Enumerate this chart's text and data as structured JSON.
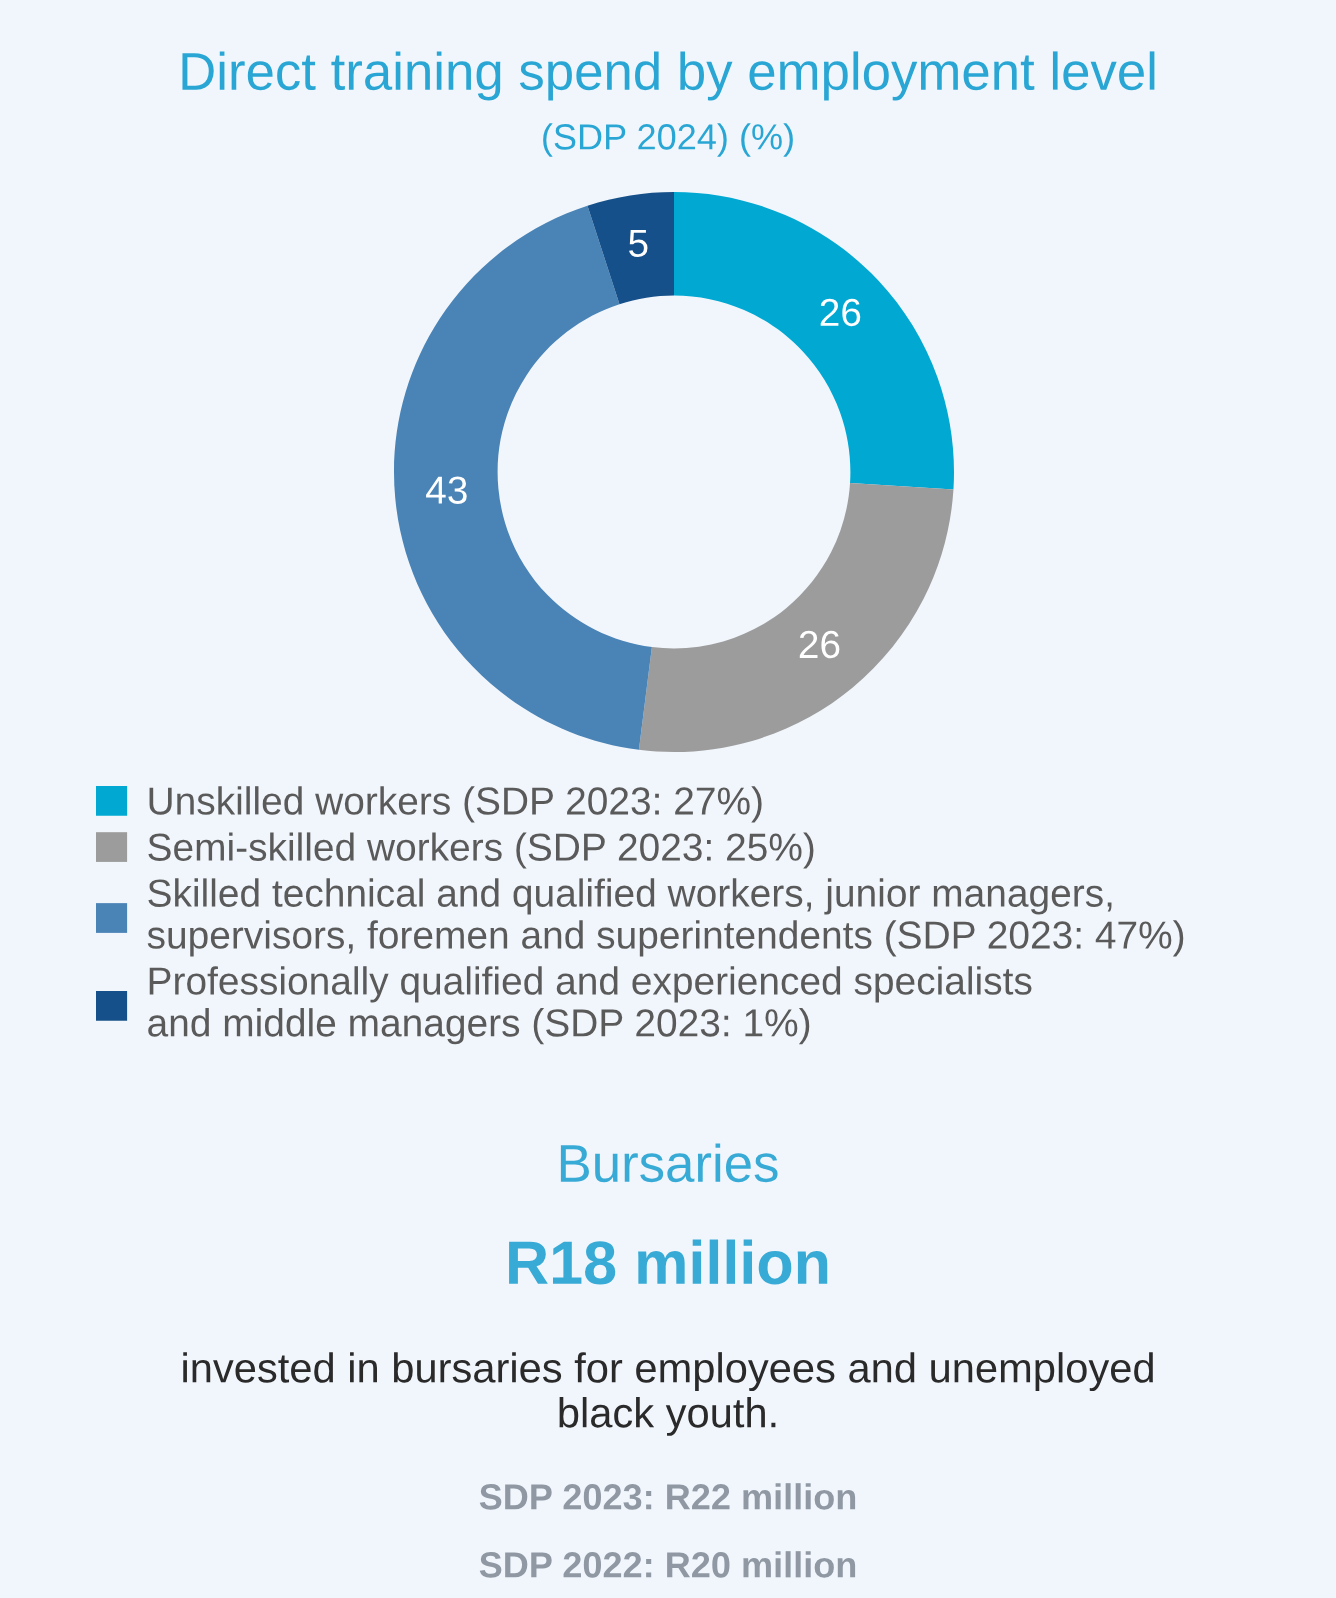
{
  "chart_data": [
    {
      "type": "donut",
      "title": "Direct training spend by employment level",
      "subtitle": "(SDP 2024) (%)",
      "categories": [
        "Unskilled workers (SDP 2023: 27%)",
        "Semi-skilled workers (SDP 2023: 25%)",
        "Skilled technical and qualified workers, junior managers,\nsupervisors, foremen and superintendents (SDP 2023: 47%)",
        "Professionally qualified and experienced specialists\nand middle managers (SDP 2023: 1%)"
      ],
      "values": [
        26,
        26,
        43,
        5
      ],
      "colors": [
        "#00a8d2",
        "#9c9c9c",
        "#4a83b6",
        "#16508a"
      ],
      "data_labels": true,
      "legend": "bottom"
    },
    {
      "type": "other",
      "title": "Bursaries",
      "subtitle": "R18 million",
      "annotations": [
        "invested in bursaries for employees and unemployed\nblack youth.",
        "SDP 2023: R22 million",
        "SDP 2022: R20 million"
      ]
    }
  ]
}
